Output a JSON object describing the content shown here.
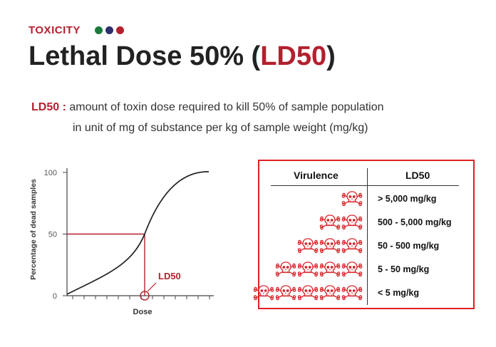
{
  "header": {
    "tag": "TOXICITY",
    "dot_colors": [
      "#1e7a3c",
      "#2d2f6e",
      "#b3202e"
    ],
    "title_main": "Lethal Dose 50% (",
    "title_accent": "LD50",
    "title_end": ")"
  },
  "definition": {
    "term": "LD50 :",
    "line1": "amount of toxin dose required to kill 50% of sample population",
    "line2": "in unit of mg of substance per kg of sample weight (mg/kg)"
  },
  "chart_data": {
    "type": "line",
    "xlabel": "Dose",
    "ylabel": "Percentage of dead samples",
    "ylim": [
      0,
      100
    ],
    "yticks": [
      "0",
      "50",
      "100"
    ],
    "curve": "sigmoid",
    "annotation": "LD50",
    "marker_y": 50,
    "colors": {
      "curve": "#222222",
      "marker": "#b3202e",
      "axis": "#444444"
    }
  },
  "table": {
    "headers": [
      "Virulence",
      "LD50"
    ],
    "rows": [
      {
        "skulls": 1,
        "value": "> 5,000 mg/kg"
      },
      {
        "skulls": 2,
        "value": "500 - 5,000 mg/kg"
      },
      {
        "skulls": 3,
        "value": "50 - 500 mg/kg"
      },
      {
        "skulls": 4,
        "value": "5 - 50 mg/kg"
      },
      {
        "skulls": 5,
        "value": "< 5 mg/kg"
      }
    ],
    "skull_icon": "skull-crossbones-icon",
    "skull_color": "#d9262b"
  }
}
